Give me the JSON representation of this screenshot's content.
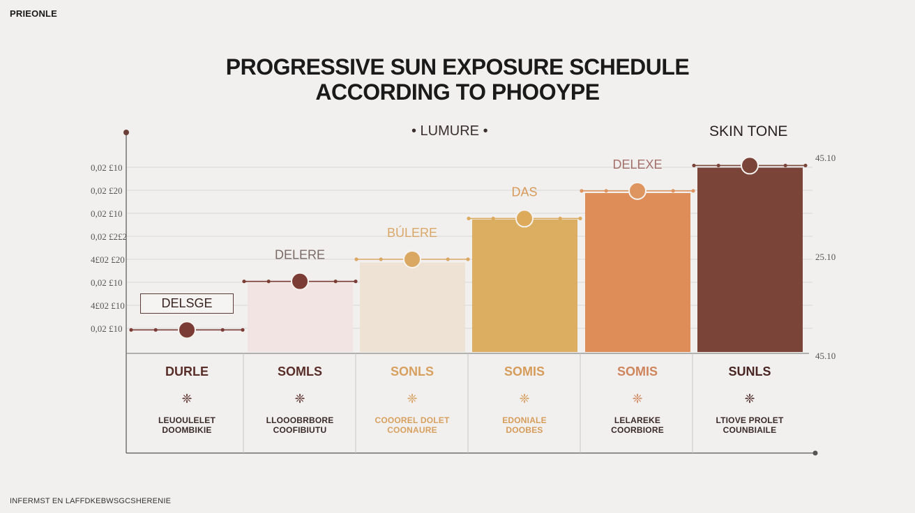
{
  "brand": "PRIEONLE",
  "title_line1": "PROGRESSIVE SUN EXPOSURE SCHEDULE",
  "title_line2": "ACCORDING TO PHOOYPE",
  "legend": "• LUMURE •",
  "skin_tone_label": "SKIN TONE",
  "footer_note": "INFERMST EN LAFFDKEBWSGCSHERENIE",
  "colors": {
    "background": "#f1f0ef",
    "bars": [
      "#f1e4e2",
      "#ede2d3",
      "#dcae62",
      "#de8d59",
      "#7a4439"
    ],
    "markers": [
      "#7a3c34",
      "#7a3c34",
      "#dba863",
      "#dda95b",
      "#df9560",
      "#7a4439"
    ],
    "heads": [
      "#5a2e28",
      "#5a2e28",
      "#d7a05e",
      "#d69c5a",
      "#cf855b",
      "#4a2622"
    ]
  },
  "chart_data": {
    "type": "bar",
    "title": "PROGRESSIVE SUN EXPOSURE SCHEDULE ACCORDING TO PHOOYPE",
    "categories": [
      "DURLE",
      "SOMLS",
      "SONLS",
      "SOMIS",
      "SOMIS",
      "SUNLS"
    ],
    "values": [
      1.0,
      3.2,
      4.05,
      6.0,
      7.2,
      8.35
    ],
    "marker_values": [
      1.0,
      3.2,
      4.2,
      6.05,
      7.3,
      8.45
    ],
    "bar_labels": [
      "DELSGE",
      "DELERE",
      "BÚLERE",
      "DAS",
      "DELEXE",
      ""
    ],
    "ylim": [
      0,
      9
    ],
    "y_tick_labels": [
      "0,02 £10",
      "4£02 £10",
      "0,02 £10",
      "4£02 £20",
      "0,02 £2£2",
      "0,02 £10",
      "0,02 £20",
      "0,02 £10"
    ],
    "right_tick_labels": [
      "45.10",
      "25.10",
      "45.10"
    ],
    "legend": "LUMURE",
    "grid": true
  },
  "columns": [
    {
      "head": "DURLE",
      "icon": "❈",
      "desc1": "LEUOULELET",
      "desc2": "DOOMBIKIE"
    },
    {
      "head": "SOMLS",
      "icon": "❈",
      "desc1": "LLOOOBRBORE",
      "desc2": "COOFIBIUTU"
    },
    {
      "head": "SONLS",
      "icon": "❈",
      "desc1": "COOOREL DOLET",
      "desc2": "COONAURE"
    },
    {
      "head": "SOMIS",
      "icon": "❈",
      "desc1": "EDONIALE",
      "desc2": "DOOBES"
    },
    {
      "head": "SOMIS",
      "icon": "❈",
      "desc1": "LELAREKE",
      "desc2": "COORBIORE"
    },
    {
      "head": "SUNLS",
      "icon": "❈",
      "desc1": "LTIOVE PROLET",
      "desc2": "COUNBIAILE"
    }
  ]
}
